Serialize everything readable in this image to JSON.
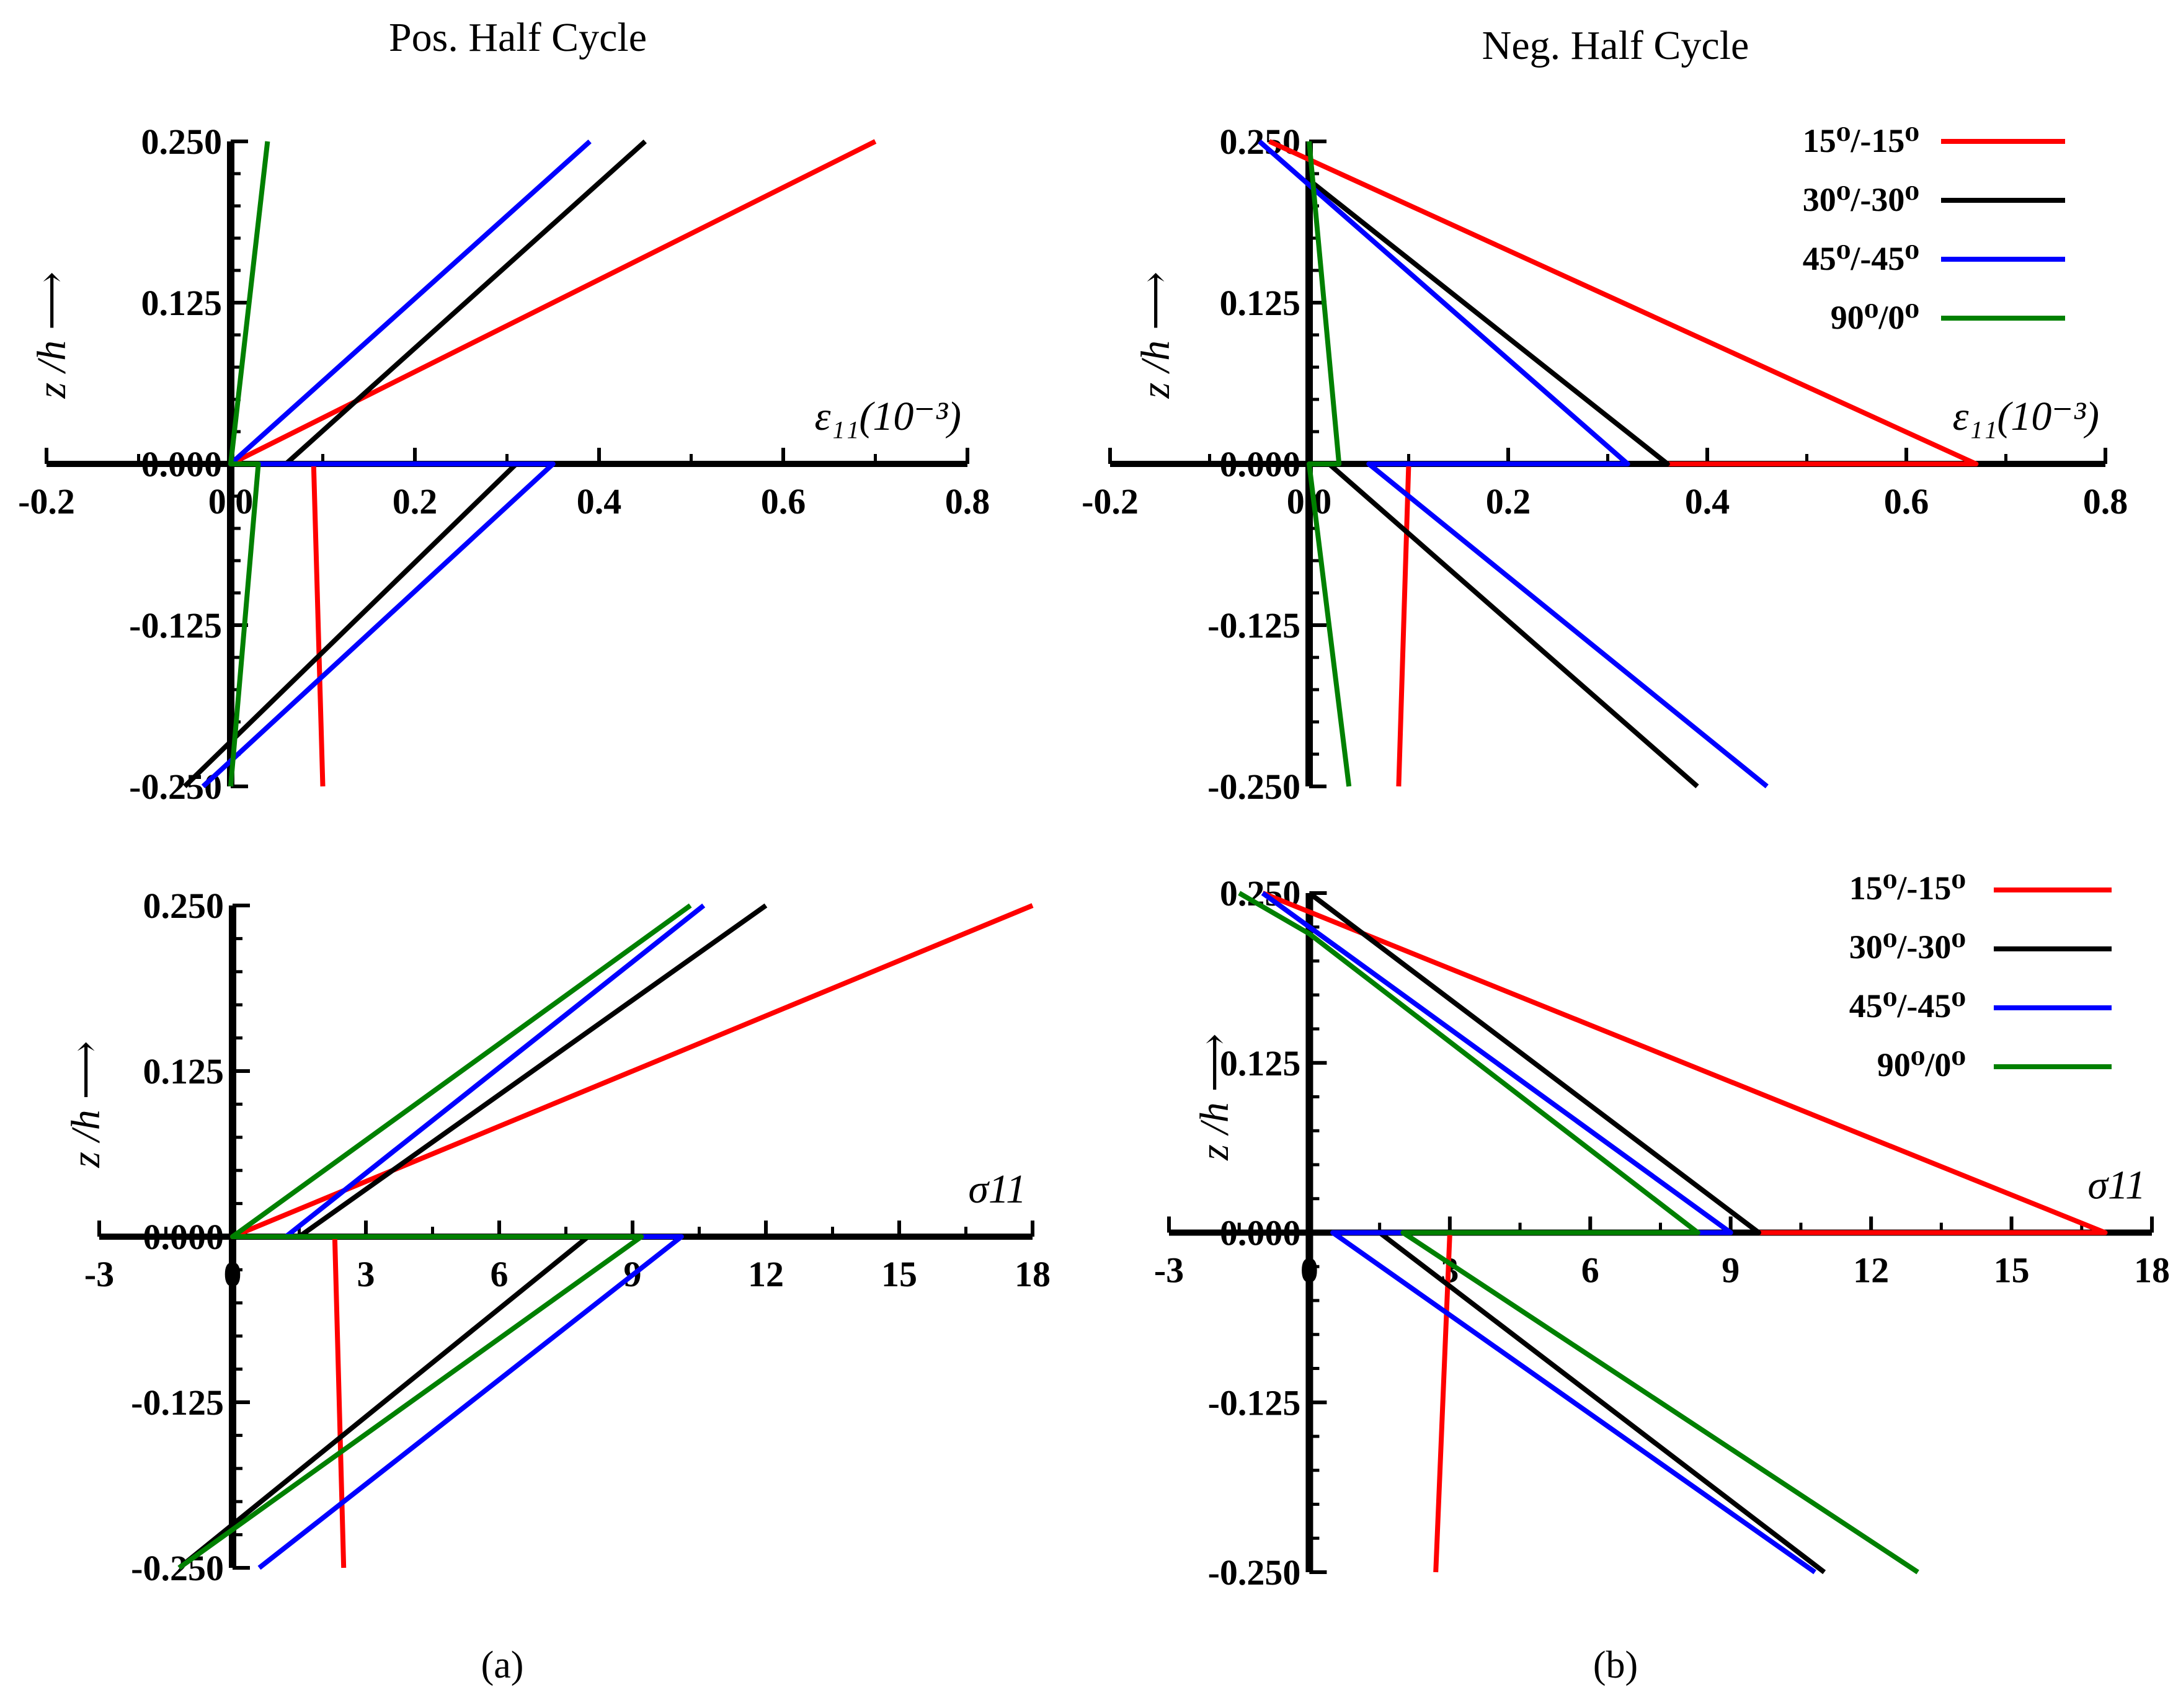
{
  "columns": [
    {
      "title": "Pos. Half Cycle",
      "label": "(a)"
    },
    {
      "title": "Neg. Half Cycle",
      "label": "(b)"
    }
  ],
  "colors": {
    "15/-15": "#ff0000",
    "30/-30": "#000000",
    "45/-45": "#0000ff",
    "90/0": "#008000",
    "axis": "#000000"
  },
  "legend_labels": [
    "15⁰/-15⁰",
    "30⁰/-30⁰",
    "45⁰/-45⁰",
    "90⁰/0⁰"
  ],
  "chart_data": [
    {
      "id": "strain-pos",
      "type": "line",
      "title": "Pos. Half Cycle",
      "xlabel": "ε₁₁(10⁻³)",
      "ylabel": "z /h ⟶",
      "xlim": [
        -0.2,
        0.8
      ],
      "ylim": [
        -0.25,
        0.25
      ],
      "xticks": [
        "-0.2",
        "0.0",
        "0.2",
        "0.4",
        "0.6",
        "0.8"
      ],
      "yticks": [
        "-0.250",
        "-0.125",
        "0.000",
        "0.125",
        "0.250"
      ],
      "series": [
        {
          "name": "15⁰/-15⁰",
          "color_key": "15/-15",
          "points": [
            [
              0.7,
              0.25
            ],
            [
              0.0,
              0.0
            ],
            [
              0.09,
              0.0
            ],
            [
              0.1,
              -0.25
            ]
          ]
        },
        {
          "name": "30⁰/-30⁰",
          "color_key": "30/-30",
          "points": [
            [
              0.45,
              0.25
            ],
            [
              0.06,
              0.0
            ],
            [
              0.31,
              0.0
            ],
            [
              -0.05,
              -0.25
            ]
          ]
        },
        {
          "name": "45⁰/-45⁰",
          "color_key": "45/-45",
          "points": [
            [
              0.39,
              0.25
            ],
            [
              0.0,
              0.0
            ],
            [
              0.35,
              0.0
            ],
            [
              -0.03,
              -0.25
            ]
          ]
        },
        {
          "name": "90⁰/0⁰",
          "color_key": "90/0",
          "points": [
            [
              0.04,
              0.25
            ],
            [
              0.0,
              0.0
            ],
            [
              0.03,
              0.0
            ],
            [
              0.0,
              -0.25
            ]
          ]
        }
      ]
    },
    {
      "id": "strain-neg",
      "type": "line",
      "title": "Neg. Half Cycle",
      "xlabel": "ε₁₁(10⁻³)",
      "ylabel": "z /h ⟶",
      "xlim": [
        -0.2,
        0.8
      ],
      "ylim": [
        -0.25,
        0.25
      ],
      "xticks": [
        "-0.2",
        "0.0",
        "0.2",
        "0.4",
        "0.6",
        "0.8"
      ],
      "yticks": [
        "-0.250",
        "-0.125",
        "0.000",
        "0.125",
        "0.250"
      ],
      "legend": "top-right",
      "series": [
        {
          "name": "15⁰/-15⁰",
          "color_key": "15/-15",
          "points": [
            [
              -0.04,
              0.25
            ],
            [
              0.67,
              0.0
            ],
            [
              0.1,
              0.0
            ],
            [
              0.09,
              -0.25
            ]
          ]
        },
        {
          "name": "30⁰/-30⁰",
          "color_key": "30/-30",
          "points": [
            [
              0.0,
              0.22
            ],
            [
              0.36,
              0.0
            ],
            [
              0.02,
              0.0
            ],
            [
              0.39,
              -0.25
            ]
          ]
        },
        {
          "name": "45⁰/-45⁰",
          "color_key": "45/-45",
          "points": [
            [
              -0.05,
              0.25
            ],
            [
              0.32,
              0.0
            ],
            [
              0.06,
              0.0
            ],
            [
              0.46,
              -0.25
            ]
          ]
        },
        {
          "name": "90⁰/0⁰",
          "color_key": "90/0",
          "points": [
            [
              0.0,
              0.25
            ],
            [
              0.03,
              0.0
            ],
            [
              0.0,
              0.0
            ],
            [
              0.04,
              -0.25
            ]
          ]
        }
      ]
    },
    {
      "id": "stress-pos",
      "type": "line",
      "title": "Pos. Half Cycle",
      "xlabel": "σ11",
      "ylabel": "z /h ⟶",
      "xlim": [
        -3,
        18
      ],
      "ylim": [
        -0.25,
        0.25
      ],
      "xticks": [
        "-3",
        "0",
        "3",
        "6",
        "9",
        "12",
        "15",
        "18"
      ],
      "yticks": [
        "-0.250",
        "-0.125",
        "0.000",
        "0.125",
        "0.250"
      ],
      "series": [
        {
          "name": "15⁰/-15⁰",
          "color_key": "15/-15",
          "points": [
            [
              18.0,
              0.25
            ],
            [
              0.0,
              0.0
            ],
            [
              2.3,
              0.0
            ],
            [
              2.5,
              -0.25
            ]
          ]
        },
        {
          "name": "30⁰/-30⁰",
          "color_key": "30/-30",
          "points": [
            [
              12.0,
              0.25
            ],
            [
              1.5,
              0.0
            ],
            [
              8.0,
              0.0
            ],
            [
              -1.2,
              -0.25
            ]
          ]
        },
        {
          "name": "45⁰/-45⁰",
          "color_key": "45/-45",
          "points": [
            [
              10.6,
              0.25
            ],
            [
              1.2,
              0.0
            ],
            [
              10.1,
              0.0
            ],
            [
              0.6,
              -0.25
            ]
          ]
        },
        {
          "name": "90⁰/0⁰",
          "color_key": "90/0",
          "points": [
            [
              10.3,
              0.25
            ],
            [
              0.0,
              0.0
            ],
            [
              9.2,
              0.0
            ],
            [
              -1.2,
              -0.25
            ]
          ]
        }
      ]
    },
    {
      "id": "stress-neg",
      "type": "line",
      "title": "Neg. Half Cycle",
      "xlabel": "σ11",
      "ylabel": "z /h ⟶",
      "xlim": [
        -3,
        18
      ],
      "ylim": [
        -0.25,
        0.25
      ],
      "xticks": [
        "-3",
        "0",
        "3",
        "6",
        "9",
        "12",
        "15",
        "18"
      ],
      "yticks": [
        "-0.250",
        "-0.125",
        "0.000",
        "0.125",
        "0.250"
      ],
      "legend": "top-right",
      "series": [
        {
          "name": "15⁰/-15⁰",
          "color_key": "15/-15",
          "points": [
            [
              -1.0,
              0.25
            ],
            [
              17.0,
              0.0
            ],
            [
              3.0,
              0.0
            ],
            [
              2.7,
              -0.25
            ]
          ]
        },
        {
          "name": "30⁰/-30⁰",
          "color_key": "30/-30",
          "points": [
            [
              0.0,
              0.25
            ],
            [
              9.6,
              0.0
            ],
            [
              1.5,
              0.0
            ],
            [
              11.0,
              -0.25
            ]
          ]
        },
        {
          "name": "45⁰/-45⁰",
          "color_key": "45/-45",
          "points": [
            [
              -1.0,
              0.25
            ],
            [
              9.0,
              0.0
            ],
            [
              0.5,
              0.0
            ],
            [
              10.8,
              -0.25
            ]
          ]
        },
        {
          "name": "90⁰/0⁰",
          "color_key": "90/0",
          "points": [
            [
              -1.5,
              0.25
            ],
            [
              0.0,
              0.22
            ],
            [
              8.3,
              0.0
            ],
            [
              2.0,
              0.0
            ],
            [
              13.0,
              -0.25
            ]
          ]
        }
      ]
    }
  ]
}
